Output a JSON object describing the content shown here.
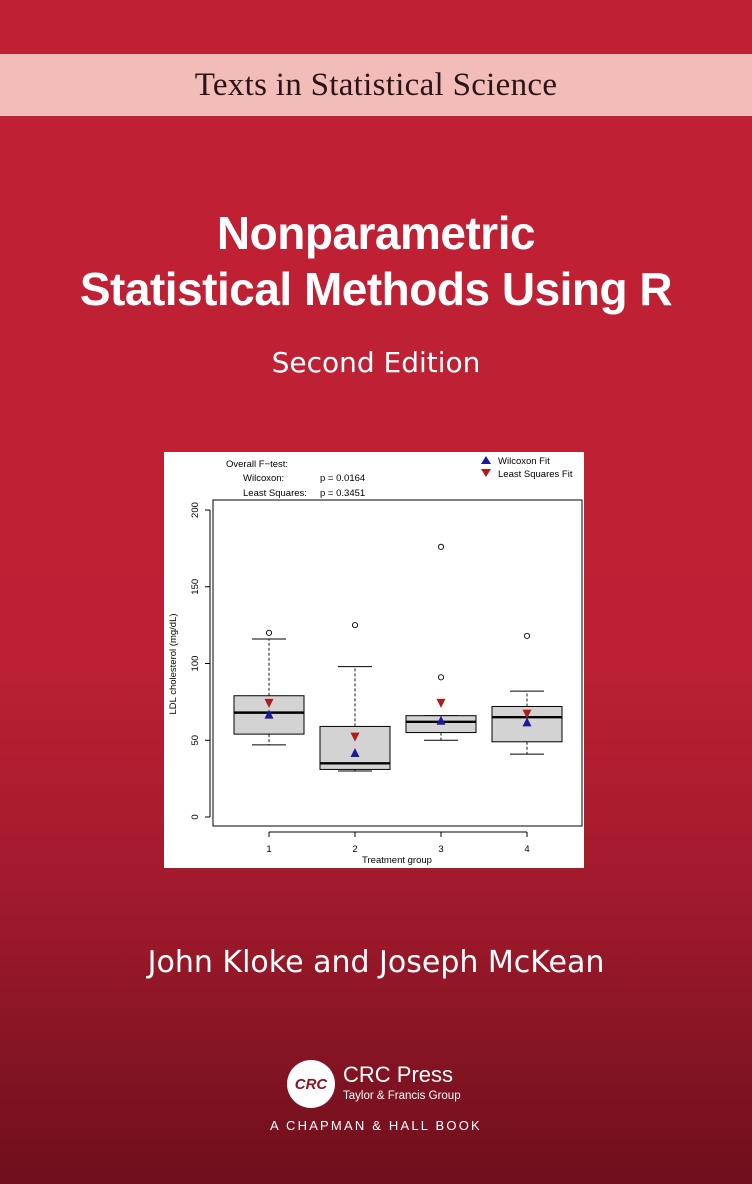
{
  "series": {
    "title": "Texts in Statistical Science"
  },
  "book": {
    "title_line1": "Nonparametric",
    "title_line2": "Statistical Methods Using R",
    "edition": "Second Edition",
    "authors": "John Kloke and Joseph McKean"
  },
  "publisher": {
    "logo_text": "CRC",
    "name": "CRC Press",
    "group": "Taylor & Francis Group",
    "imprint": "A CHAPMAN & HALL BOOK"
  },
  "colors": {
    "cover_red": "#c02034",
    "band_pink": "#f2bcb8",
    "box_fill": "#d3d3d3",
    "wilcoxon_marker": "#1a1a9c",
    "least_squares_marker": "#b01c1c"
  },
  "chart_data": {
    "type": "boxplot",
    "xlabel": "Treatment group",
    "ylabel": "LDL cholesterol (mg/dL)",
    "ylim": [
      0,
      200
    ],
    "yticks": [
      "0",
      "50",
      "100",
      "150",
      "200"
    ],
    "categories": [
      "1",
      "2",
      "3",
      "4"
    ],
    "boxes": [
      {
        "group": "1",
        "whisker_low": 47,
        "q1": 54,
        "median": 68,
        "q3": 79,
        "whisker_high": 116,
        "outliers": [
          120
        ]
      },
      {
        "group": "2",
        "whisker_low": 30,
        "q1": 31,
        "median": 35,
        "q3": 59,
        "whisker_high": 98,
        "outliers": [
          125
        ]
      },
      {
        "group": "3",
        "whisker_low": 50,
        "q1": 55,
        "median": 62,
        "q3": 66,
        "whisker_high": 66,
        "outliers": [
          91,
          176
        ]
      },
      {
        "group": "4",
        "whisker_low": 41,
        "q1": 49,
        "median": 65,
        "q3": 72,
        "whisker_high": 82,
        "outliers": [
          118
        ]
      }
    ],
    "series": [
      {
        "name": "Wilcoxon Fit",
        "marker": "triangle-up",
        "values": [
          67,
          42,
          63,
          62
        ]
      },
      {
        "name": "Least Squares Fit",
        "marker": "triangle-down",
        "values": [
          74,
          52,
          74,
          67
        ]
      }
    ],
    "annotation": {
      "heading": "Overall F−test:",
      "rows": [
        {
          "label": "Wilcoxon:",
          "value": "p = 0.0164"
        },
        {
          "label": "Least Squares:",
          "value": "p = 0.3451"
        }
      ]
    },
    "legend_position": "top-right"
  }
}
